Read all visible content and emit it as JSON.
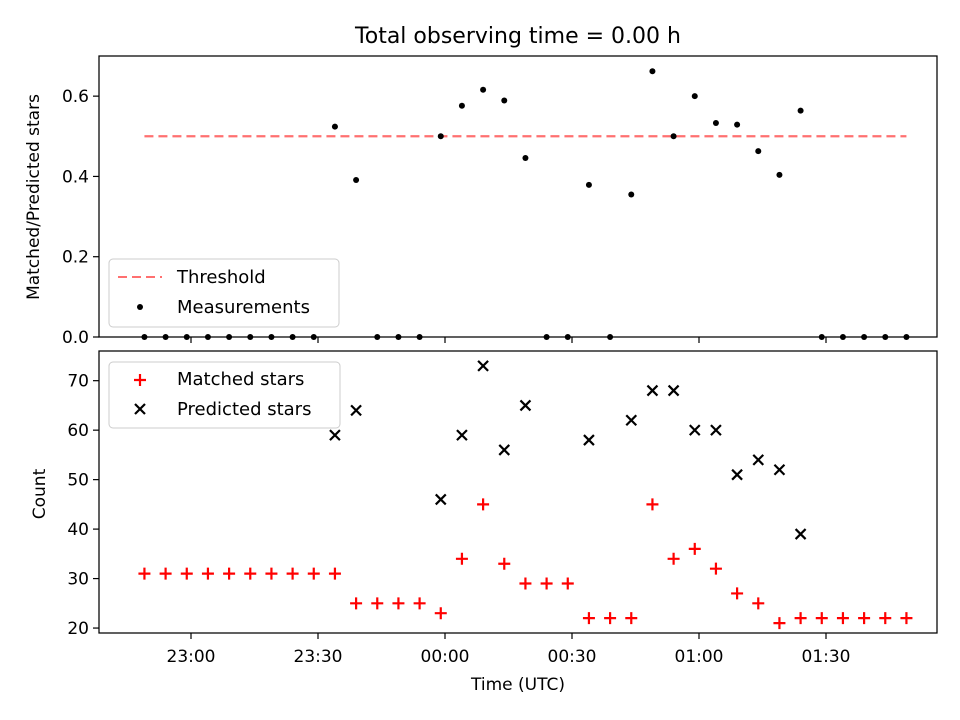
{
  "title": "Total observing time = 0.00 h",
  "xlabel": "Time (UTC)",
  "x_tick_labels": [
    "23:00",
    "23:30",
    "00:00",
    "00:30",
    "01:00",
    "01:30"
  ],
  "colors": {
    "threshold": "#ff7070",
    "measurements": "#000000",
    "matched": "#ff0000",
    "predicted": "#000000"
  },
  "chart_data": [
    {
      "type": "scatter",
      "ylabel": "Matched/Predicted stars",
      "ylim": [
        0,
        0.7
      ],
      "yticks": [
        "0.0",
        "0.2",
        "0.4",
        "0.6"
      ],
      "legend_position": "lower-left",
      "grid": false,
      "series": [
        {
          "name": "Threshold",
          "kind": "line",
          "style": "dashed",
          "x": [
            "22:49",
            "00:39",
            "01:49"
          ],
          "y": [
            0.5,
            0.5,
            0.5
          ]
        },
        {
          "name": "Measurements",
          "kind": "scatter",
          "marker": "dot",
          "x": [
            "22:49",
            "22:54",
            "22:59",
            "23:04",
            "23:09",
            "23:14",
            "23:19",
            "23:24",
            "23:29",
            "23:34",
            "23:39",
            "23:44",
            "23:49",
            "23:54",
            "23:59",
            "00:04",
            "00:09",
            "00:14",
            "00:19",
            "00:24",
            "00:29",
            "00:34",
            "00:39",
            "00:44",
            "00:49",
            "00:54",
            "00:59",
            "01:04",
            "01:09",
            "01:14",
            "01:19",
            "01:24",
            "01:29",
            "01:34",
            "01:39",
            "01:44",
            "01:49"
          ],
          "y": [
            0,
            0,
            0,
            0,
            0,
            0,
            0,
            0,
            0,
            0.524,
            0.391,
            0,
            0,
            0,
            0.5,
            0.576,
            0.616,
            0.589,
            0.446,
            0,
            0,
            0.379,
            0,
            0.355,
            0.662,
            0.5,
            0.6,
            0.533,
            0.529,
            0.463,
            0.404,
            0.564,
            0,
            0,
            0,
            0,
            0
          ]
        }
      ]
    },
    {
      "type": "scatter",
      "ylabel": "Count",
      "ylim": [
        19,
        76
      ],
      "yticks": [
        "20",
        "30",
        "40",
        "50",
        "60",
        "70"
      ],
      "legend_position": "upper-left",
      "grid": false,
      "series": [
        {
          "name": "Matched stars",
          "marker": "plus",
          "x": [
            "22:49",
            "22:54",
            "22:59",
            "23:04",
            "23:09",
            "23:14",
            "23:19",
            "23:24",
            "23:29",
            "23:34",
            "23:39",
            "23:44",
            "23:49",
            "23:54",
            "23:59",
            "00:04",
            "00:09",
            "00:14",
            "00:19",
            "00:24",
            "00:29",
            "00:34",
            "00:39",
            "00:44",
            "00:49",
            "00:54",
            "00:59",
            "01:04",
            "01:09",
            "01:14",
            "01:19",
            "01:24",
            "01:29",
            "01:34",
            "01:39",
            "01:44",
            "01:49"
          ],
          "y": [
            31,
            31,
            31,
            31,
            31,
            31,
            31,
            31,
            31,
            31,
            25,
            25,
            25,
            25,
            23,
            34,
            45,
            33,
            29,
            29,
            29,
            22,
            22,
            22,
            45,
            34,
            36,
            32,
            27,
            25,
            21,
            22,
            22,
            22,
            22,
            22,
            22
          ]
        },
        {
          "name": "Predicted stars",
          "marker": "x",
          "x": [
            "23:34",
            "23:39",
            "23:59",
            "00:04",
            "00:09",
            "00:14",
            "00:19",
            "00:34",
            "00:44",
            "00:49",
            "00:54",
            "00:59",
            "01:04",
            "01:09",
            "01:14",
            "01:19",
            "01:24"
          ],
          "y": [
            59,
            64,
            46,
            59,
            73,
            56,
            65,
            58,
            62,
            68,
            68,
            60,
            60,
            51,
            54,
            52,
            39
          ]
        }
      ]
    }
  ]
}
